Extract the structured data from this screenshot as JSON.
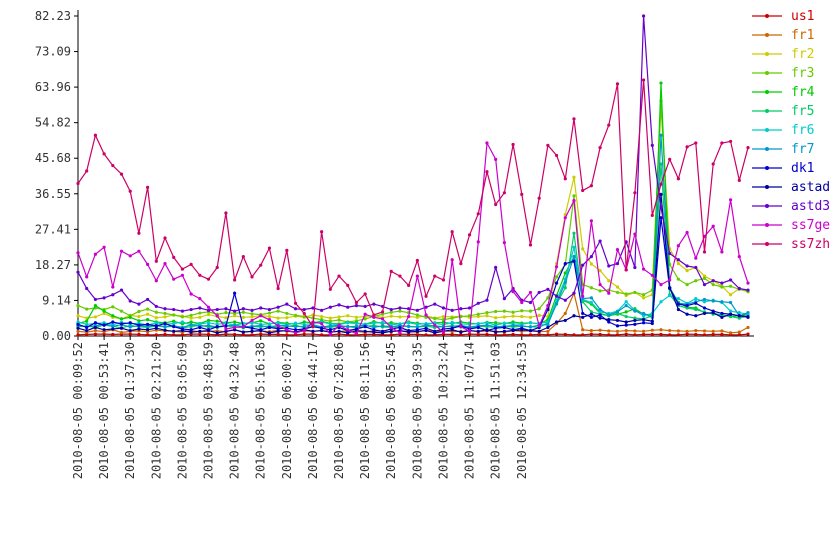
{
  "chart_data": {
    "type": "line",
    "ylim": [
      0,
      82.23
    ],
    "yticks": [
      "0.00",
      "9.14",
      "18.27",
      "27.41",
      "36.55",
      "45.68",
      "54.82",
      "63.96",
      "73.09",
      "82.23"
    ],
    "xticks": [
      "2010-08-05 00:09:52",
      "2010-08-05 00:53:41",
      "2010-08-05 01:37:30",
      "2010-08-05 02:21:20",
      "2010-08-05 03:05:09",
      "2010-08-05 03:48:59",
      "2010-08-05 04:32:48",
      "2010-08-05 05:16:38",
      "2010-08-05 06:00:27",
      "2010-08-05 06:44:17",
      "2010-08-05 07:28:06",
      "2010-08-05 08:11:56",
      "2010-08-05 08:55:45",
      "2010-08-05 09:39:35",
      "2010-08-05 10:23:24",
      "2010-08-05 11:07:14",
      "2010-08-05 11:51:03",
      "2010-08-05 12:34:53"
    ],
    "x_points_per_tick": 3,
    "grid": false,
    "legend_position": "right",
    "series": [
      {
        "name": "us1",
        "color": "#cc0000",
        "values": [
          0.3,
          0.4,
          0.5,
          0.5,
          0.4,
          0.5,
          0.5,
          0.4,
          0.3,
          0.3,
          0.4,
          0.3,
          0.3,
          0.5,
          0.5,
          0.4,
          0.3,
          0.5,
          0.4,
          0.3,
          0.3,
          0.5,
          0.4,
          0.4,
          0.3,
          0.3,
          0.5,
          0.5,
          0.3,
          0.3,
          0.5,
          0.3,
          0.3,
          0.4,
          0.4,
          0.3,
          0.3,
          0.5,
          0.4,
          0.4,
          0.3,
          0.3,
          0.4,
          0.4,
          0.3,
          0.5,
          0.4,
          0.4,
          0.3,
          0.3,
          0.4,
          0.3,
          0.3,
          0.4,
          0.3,
          0.5,
          0.4,
          0.3,
          0.3,
          0.5,
          0.4,
          0.3,
          0.3,
          0.5,
          0.3,
          0.4,
          0.4,
          0.4,
          0.3,
          0.3,
          0.5,
          0.4,
          0.3,
          0.4,
          0.4,
          0.3,
          0.3,
          0.5
        ]
      },
      {
        "name": "fr1",
        "color": "#cc6600",
        "values": [
          1.2,
          1.0,
          1.4,
          1.1,
          1.6,
          0.9,
          1.2,
          1.3,
          1.1,
          1.5,
          1.3,
          1.2,
          1.0,
          1.4,
          1.1,
          1.2,
          1.3,
          1.1,
          1.6,
          1.0,
          1.2,
          1.3,
          1.1,
          1.5,
          1.2,
          1.0,
          1.3,
          1.2,
          1.4,
          1.1,
          1.2,
          1.3,
          1.1,
          1.0,
          1.4,
          1.2,
          1.1,
          1.3,
          1.2,
          1.0,
          1.5,
          1.2,
          1.3,
          1.1,
          1.2,
          1.4,
          1.1,
          1.3,
          1.2,
          1.0,
          1.4,
          1.2,
          1.3,
          1.1,
          1.2,
          3.2,
          5.8,
          11.0,
          1.6,
          1.4,
          1.5,
          1.3,
          1.2,
          1.4,
          1.3,
          1.2,
          1.5,
          1.6,
          1.4,
          1.3,
          1.2,
          1.4,
          1.3,
          1.2,
          1.3,
          0.8,
          1.0,
          2.2
        ]
      },
      {
        "name": "fr2",
        "color": "#cccc00",
        "values": [
          5.2,
          4.6,
          4.9,
          5.8,
          4.8,
          4.4,
          5.3,
          5.0,
          5.6,
          4.7,
          4.9,
          5.4,
          5.1,
          4.6,
          4.8,
          5.5,
          5.0,
          4.7,
          5.2,
          4.8,
          4.9,
          5.3,
          5.0,
          4.6,
          4.7,
          5.1,
          4.8,
          5.4,
          5.0,
          4.6,
          4.9,
          5.2,
          4.8,
          5.0,
          5.3,
          4.7,
          5.1,
          4.9,
          5.0,
          4.8,
          5.2,
          4.6,
          5.0,
          4.9,
          5.1,
          4.8,
          5.0,
          5.2,
          4.7,
          4.9,
          5.1,
          5.0,
          4.8,
          5.3,
          5.0,
          18.6,
          31.2,
          40.8,
          22.4,
          18.5,
          16.8,
          14.2,
          12.6,
          10.4,
          11.2,
          9.8,
          10.6,
          58.9,
          22.4,
          18.6,
          16.8,
          17.6,
          15.4,
          14.2,
          12.8,
          10.6,
          12.2,
          11.4
        ]
      },
      {
        "name": "fr3",
        "color": "#66cc00",
        "values": [
          7.8,
          6.9,
          7.2,
          6.8,
          7.5,
          6.4,
          5.2,
          6.3,
          6.9,
          6.1,
          5.8,
          5.4,
          4.9,
          5.3,
          5.9,
          6.2,
          5.6,
          6.0,
          5.8,
          6.1,
          5.7,
          5.5,
          5.9,
          6.4,
          5.8,
          5.3,
          5.0,
          4.6,
          4.2,
          3.8,
          4.1,
          3.6,
          3.9,
          4.4,
          5.0,
          5.6,
          6.1,
          6.4,
          6.0,
          5.4,
          4.8,
          4.5,
          4.2,
          4.6,
          5.0,
          5.2,
          5.6,
          6.0,
          6.3,
          6.4,
          6.1,
          6.5,
          6.4,
          7.0,
          9.8,
          15.2,
          18.4,
          36.0,
          13.2,
          12.4,
          11.6,
          11.8,
          11.2,
          10.8,
          11.2,
          10.6,
          11.8,
          60.4,
          18.4,
          14.6,
          13.2,
          14.2,
          14.8,
          13.2,
          12.6,
          12.8,
          12.0,
          11.4
        ]
      },
      {
        "name": "fr4",
        "color": "#00cc00",
        "values": [
          3.2,
          3.8,
          7.8,
          6.4,
          5.2,
          4.4,
          4.8,
          3.9,
          4.2,
          3.6,
          3.4,
          3.8,
          3.1,
          3.6,
          3.2,
          4.0,
          3.8,
          3.4,
          3.6,
          3.2,
          3.4,
          3.9,
          3.1,
          3.5,
          3.3,
          3.0,
          3.6,
          3.4,
          3.8,
          3.2,
          3.1,
          3.5,
          3.4,
          3.0,
          3.7,
          3.2,
          3.4,
          3.1,
          3.6,
          3.3,
          3.0,
          3.4,
          3.5,
          3.2,
          3.6,
          3.3,
          3.1,
          3.5,
          3.4,
          3.2,
          3.6,
          3.3,
          3.4,
          3.1,
          4.2,
          10.4,
          16.2,
          20.4,
          9.2,
          8.2,
          5.8,
          5.2,
          5.6,
          6.2,
          7.0,
          5.6,
          5.4,
          65.0,
          12.4,
          8.6,
          7.4,
          7.2,
          6.0,
          5.8,
          5.4,
          5.0,
          5.2,
          5.6
        ]
      },
      {
        "name": "fr5",
        "color": "#00cc66",
        "values": [
          2.4,
          2.6,
          2.2,
          2.8,
          2.5,
          2.1,
          2.7,
          2.4,
          2.2,
          2.6,
          2.3,
          2.5,
          2.1,
          2.4,
          2.8,
          2.3,
          2.2,
          2.6,
          2.4,
          2.1,
          2.5,
          2.3,
          2.6,
          2.2,
          2.4,
          2.8,
          2.1,
          2.5,
          2.3,
          2.2,
          2.6,
          2.4,
          2.1,
          2.5,
          2.7,
          2.3,
          2.2,
          2.6,
          2.4,
          2.3,
          2.5,
          2.2,
          2.4,
          2.6,
          2.3,
          2.1,
          2.5,
          2.4,
          2.2,
          2.6,
          2.3,
          2.5,
          2.4,
          2.2,
          3.4,
          8.2,
          12.4,
          26.4,
          8.8,
          6.2,
          5.6,
          5.2,
          5.8,
          5.0,
          4.6,
          4.4,
          5.2,
          44.2,
          10.6,
          7.8,
          7.2,
          6.8,
          6.2,
          5.6,
          5.4,
          5.0,
          4.6,
          5.2
        ]
      },
      {
        "name": "fr6",
        "color": "#00cccc",
        "values": [
          3.6,
          3.0,
          3.2,
          3.4,
          2.9,
          3.5,
          3.1,
          3.3,
          2.8,
          3.4,
          3.0,
          3.2,
          3.6,
          2.9,
          3.1,
          3.4,
          3.0,
          3.3,
          2.8,
          3.2,
          3.5,
          3.0,
          3.1,
          3.4,
          2.9,
          3.3,
          3.0,
          3.2,
          3.6,
          3.1,
          2.9,
          3.4,
          3.2,
          3.0,
          3.3,
          3.5,
          2.9,
          3.1,
          3.4,
          3.0,
          3.2,
          3.3,
          2.9,
          3.5,
          3.1,
          3.0,
          3.2,
          3.4,
          2.8,
          3.3,
          3.1,
          3.0,
          3.4,
          3.2,
          3.6,
          9.2,
          14.6,
          22.8,
          9.4,
          8.6,
          6.2,
          5.8,
          6.4,
          8.8,
          6.6,
          5.2,
          5.8,
          8.8,
          10.4,
          9.6,
          8.4,
          9.6,
          8.8,
          9.2,
          8.6,
          6.4,
          6.0,
          5.6
        ]
      },
      {
        "name": "fr7",
        "color": "#0099cc",
        "values": [
          2.8,
          2.4,
          2.6,
          3.0,
          2.5,
          2.9,
          2.3,
          2.7,
          2.5,
          2.8,
          2.4,
          2.6,
          2.2,
          2.9,
          2.5,
          2.7,
          2.3,
          2.6,
          2.8,
          2.4,
          2.5,
          2.7,
          2.2,
          2.8,
          2.6,
          2.4,
          2.5,
          2.9,
          2.3,
          2.6,
          2.7,
          2.4,
          2.5,
          2.8,
          2.2,
          2.6,
          2.4,
          2.7,
          2.5,
          2.3,
          2.8,
          2.6,
          2.4,
          2.5,
          2.7,
          2.3,
          2.6,
          2.8,
          2.4,
          2.5,
          2.7,
          2.6,
          2.3,
          2.8,
          2.9,
          8.4,
          13.8,
          20.4,
          9.6,
          9.8,
          6.8,
          5.4,
          6.2,
          7.8,
          6.4,
          5.8,
          4.8,
          51.6,
          12.4,
          8.4,
          8.2,
          8.8,
          9.4,
          9.0,
          8.8,
          8.6,
          5.2,
          6.0
        ]
      },
      {
        "name": "dk1",
        "color": "#0000cc",
        "values": [
          3.0,
          2.2,
          3.4,
          2.8,
          3.6,
          3.1,
          3.4,
          2.8,
          3.0,
          2.6,
          3.2,
          2.4,
          1.8,
          1.6,
          2.2,
          1.6,
          2.4,
          2.6,
          11.0,
          2.4,
          2.0,
          1.6,
          2.2,
          1.9,
          2.0,
          1.6,
          1.8,
          2.4,
          2.0,
          1.6,
          2.2,
          1.4,
          1.8,
          2.4,
          1.6,
          1.2,
          1.8,
          2.2,
          1.4,
          1.6,
          2.0,
          1.2,
          1.8,
          2.0,
          2.6,
          1.8,
          2.2,
          1.4,
          2.0,
          2.2,
          1.6,
          2.0,
          1.4,
          2.2,
          6.8,
          13.6,
          18.6,
          19.2,
          5.8,
          4.8,
          5.4,
          3.6,
          2.6,
          2.8,
          3.0,
          3.4,
          3.2,
          30.4,
          12.2,
          8.2,
          7.8,
          8.4,
          7.2,
          6.4,
          5.8,
          5.6,
          5.2,
          5.0
        ]
      },
      {
        "name": "astad",
        "color": "#0000a0",
        "values": [
          2.0,
          1.4,
          2.2,
          1.6,
          1.8,
          2.0,
          1.4,
          1.8,
          1.6,
          2.0,
          1.5,
          1.2,
          1.4,
          1.0,
          1.2,
          1.4,
          0.8,
          1.2,
          1.6,
          1.0,
          1.2,
          1.4,
          0.8,
          1.2,
          1.4,
          1.0,
          1.6,
          1.2,
          1.4,
          1.0,
          1.2,
          0.8,
          1.4,
          1.2,
          1.0,
          0.8,
          1.2,
          1.4,
          1.0,
          1.2,
          1.4,
          0.8,
          1.2,
          1.6,
          1.0,
          1.4,
          1.2,
          1.6,
          1.0,
          1.2,
          1.4,
          1.6,
          1.4,
          1.2,
          2.2,
          3.6,
          4.0,
          5.2,
          4.8,
          5.6,
          4.6,
          4.2,
          4.0,
          3.6,
          4.0,
          4.2,
          3.8,
          36.4,
          12.4,
          6.8,
          5.6,
          5.2,
          5.8,
          6.0,
          4.8,
          5.6,
          5.2,
          4.8
        ]
      },
      {
        "name": "astd3",
        "color": "#6600cc",
        "values": [
          16.4,
          12.2,
          9.4,
          9.8,
          10.6,
          11.8,
          9.0,
          8.2,
          9.4,
          7.6,
          7.0,
          6.8,
          6.4,
          6.8,
          7.2,
          6.6,
          6.8,
          7.0,
          6.4,
          7.0,
          6.6,
          7.2,
          6.8,
          7.4,
          8.2,
          7.0,
          6.8,
          7.2,
          6.6,
          7.4,
          8.0,
          7.4,
          7.8,
          7.6,
          8.2,
          7.6,
          6.8,
          7.2,
          7.0,
          6.6,
          7.4,
          8.2,
          7.2,
          6.6,
          7.0,
          7.2,
          8.4,
          9.2,
          17.6,
          9.6,
          12.2,
          9.2,
          8.6,
          11.2,
          12.0,
          10.2,
          9.2,
          11.0,
          18.2,
          20.4,
          24.4,
          18.0,
          18.6,
          24.2,
          17.6,
          82.23,
          49.0,
          33.0,
          21.2,
          19.6,
          18.0,
          17.6,
          13.2,
          14.2,
          13.6,
          14.4,
          12.2,
          11.8
        ]
      },
      {
        "name": "ss7ge",
        "color": "#cc00cc",
        "values": [
          21.4,
          15.2,
          21.0,
          22.8,
          12.6,
          21.8,
          20.6,
          21.8,
          18.4,
          14.2,
          18.6,
          14.6,
          15.6,
          10.8,
          9.6,
          7.4,
          5.2,
          1.8,
          2.2,
          2.4,
          4.0,
          5.2,
          4.2,
          2.6,
          1.6,
          0.8,
          1.4,
          3.6,
          3.2,
          0.4,
          2.8,
          1.6,
          0.6,
          5.6,
          4.8,
          4.4,
          2.2,
          0.8,
          5.0,
          15.4,
          5.4,
          2.8,
          1.0,
          19.6,
          2.4,
          1.2,
          24.2,
          49.6,
          45.4,
          24.0,
          11.4,
          8.6,
          11.2,
          2.6,
          7.8,
          17.8,
          30.4,
          34.8,
          10.2,
          29.6,
          13.2,
          11.0,
          22.2,
          17.0,
          26.2,
          17.2,
          15.6,
          13.2,
          14.4,
          23.2,
          26.6,
          20.0,
          25.6,
          28.2,
          21.6,
          35.0,
          20.4,
          13.6
        ]
      },
      {
        "name": "ss7zh",
        "color": "#cc0066",
        "values": [
          39.2,
          42.4,
          51.6,
          46.8,
          43.8,
          41.6,
          37.2,
          26.4,
          38.2,
          19.2,
          25.2,
          20.2,
          17.2,
          18.4,
          15.6,
          14.6,
          17.6,
          31.6,
          14.4,
          20.4,
          15.2,
          18.2,
          22.6,
          12.2,
          22.0,
          8.4,
          5.8,
          2.4,
          26.8,
          12.0,
          15.4,
          13.0,
          8.6,
          10.8,
          5.4,
          6.2,
          16.6,
          15.4,
          13.0,
          19.4,
          10.2,
          15.4,
          14.4,
          26.8,
          18.6,
          26.0,
          31.4,
          42.2,
          33.8,
          36.8,
          49.2,
          36.4,
          23.4,
          35.4,
          49.0,
          46.4,
          40.4,
          55.8,
          37.4,
          38.6,
          48.4,
          54.2,
          64.8,
          17.0,
          36.8,
          65.8,
          31.0,
          39.0,
          45.4,
          40.4,
          48.6,
          49.6,
          21.6,
          44.2,
          49.6,
          50.0,
          40.0,
          48.4
        ]
      }
    ]
  }
}
